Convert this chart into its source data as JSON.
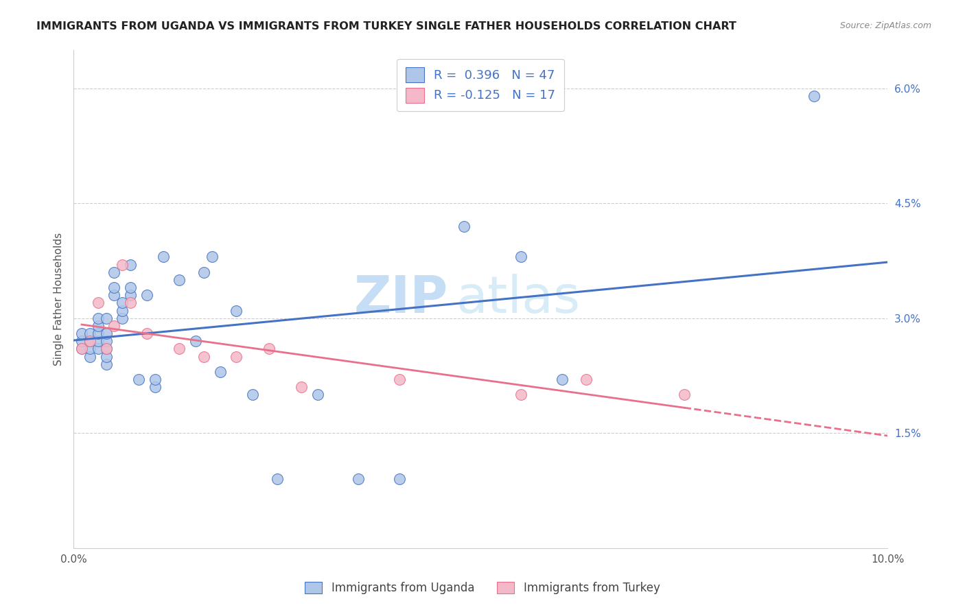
{
  "title": "IMMIGRANTS FROM UGANDA VS IMMIGRANTS FROM TURKEY SINGLE FATHER HOUSEHOLDS CORRELATION CHART",
  "source": "Source: ZipAtlas.com",
  "ylabel": "Single Father Households",
  "xlim": [
    0.0,
    0.1
  ],
  "ylim": [
    0.0,
    0.065
  ],
  "xtick_positions": [
    0.0,
    0.02,
    0.04,
    0.06,
    0.08,
    0.1
  ],
  "xticklabels": [
    "0.0%",
    "",
    "",
    "",
    "",
    "10.0%"
  ],
  "yticks_right": [
    0.015,
    0.03,
    0.045,
    0.06
  ],
  "ytick_labels_right": [
    "1.5%",
    "3.0%",
    "4.5%",
    "6.0%"
  ],
  "r_uganda": 0.396,
  "n_uganda": 47,
  "r_turkey": -0.125,
  "n_turkey": 17,
  "color_uganda": "#aec6e8",
  "color_turkey": "#f4b8c8",
  "color_line_uganda": "#4472c4",
  "color_line_turkey": "#e8708a",
  "watermark": "ZIPatlas",
  "watermark_color": "#d0e8f5",
  "background_color": "#ffffff",
  "uganda_x": [
    0.001,
    0.001,
    0.001,
    0.002,
    0.002,
    0.002,
    0.002,
    0.003,
    0.003,
    0.003,
    0.003,
    0.003,
    0.004,
    0.004,
    0.004,
    0.004,
    0.004,
    0.004,
    0.005,
    0.005,
    0.005,
    0.006,
    0.006,
    0.006,
    0.007,
    0.007,
    0.007,
    0.008,
    0.009,
    0.01,
    0.01,
    0.011,
    0.013,
    0.015,
    0.016,
    0.017,
    0.018,
    0.02,
    0.022,
    0.025,
    0.03,
    0.035,
    0.04,
    0.048,
    0.055,
    0.06,
    0.091
  ],
  "uganda_y": [
    0.026,
    0.027,
    0.028,
    0.025,
    0.026,
    0.027,
    0.028,
    0.026,
    0.027,
    0.028,
    0.029,
    0.03,
    0.024,
    0.025,
    0.026,
    0.027,
    0.028,
    0.03,
    0.033,
    0.034,
    0.036,
    0.03,
    0.031,
    0.032,
    0.033,
    0.034,
    0.037,
    0.022,
    0.033,
    0.021,
    0.022,
    0.038,
    0.035,
    0.027,
    0.036,
    0.038,
    0.023,
    0.031,
    0.02,
    0.009,
    0.02,
    0.009,
    0.009,
    0.042,
    0.038,
    0.022,
    0.059
  ],
  "turkey_x": [
    0.001,
    0.002,
    0.003,
    0.004,
    0.005,
    0.006,
    0.007,
    0.009,
    0.013,
    0.016,
    0.02,
    0.024,
    0.028,
    0.04,
    0.055,
    0.063,
    0.075
  ],
  "turkey_y": [
    0.026,
    0.027,
    0.032,
    0.026,
    0.029,
    0.037,
    0.032,
    0.028,
    0.026,
    0.025,
    0.025,
    0.026,
    0.021,
    0.022,
    0.02,
    0.022,
    0.02
  ]
}
